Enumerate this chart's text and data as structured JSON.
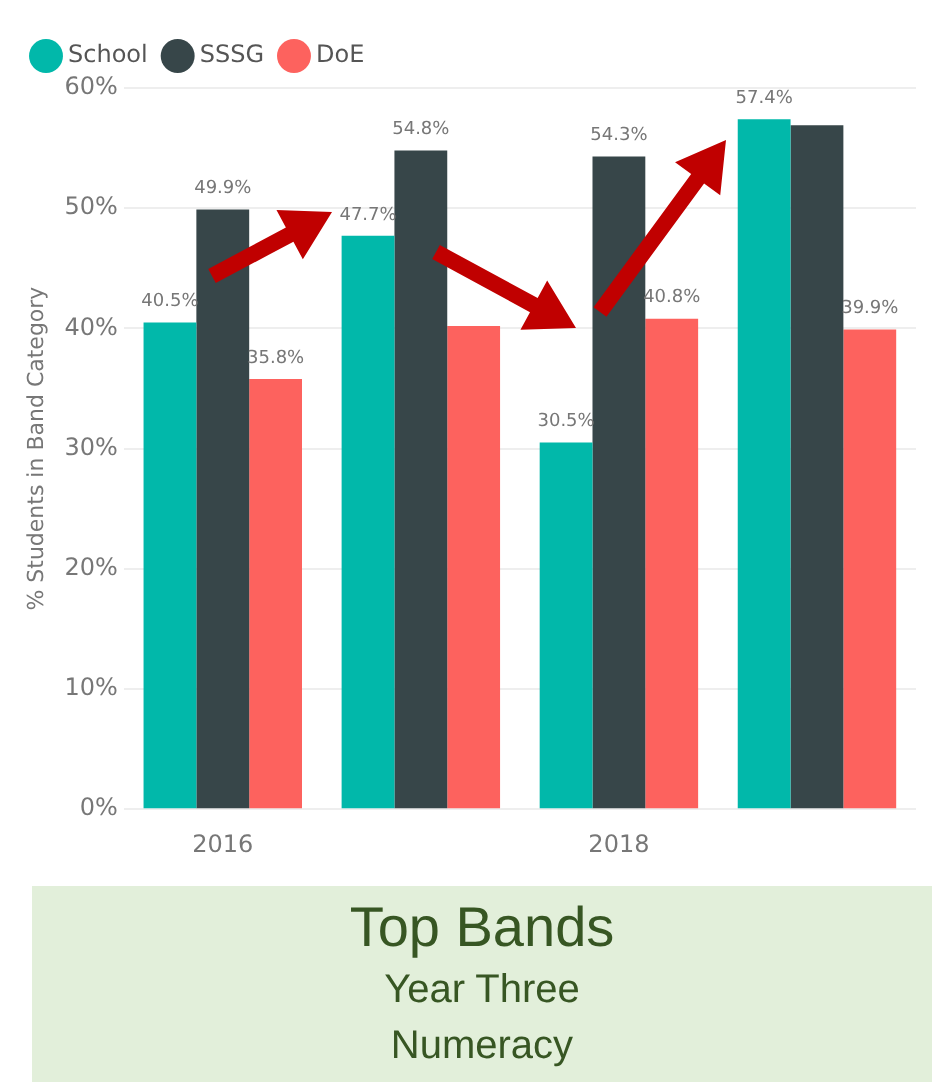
{
  "chart_data": {
    "type": "bar",
    "title": "Top Bands",
    "subtitle": "Year Three Numeracy",
    "ylabel": "% Students in Band Category",
    "categories": [
      "2016",
      null,
      "2018",
      null
    ],
    "series": [
      {
        "name": "School",
        "color": "#01b8aa",
        "values": [
          40.5,
          47.7,
          30.5,
          57.4
        ],
        "value_labels": [
          "40.5%",
          "47.7%",
          "30.5%",
          "57.4%"
        ]
      },
      {
        "name": "SSSG",
        "color": "#374649",
        "values": [
          49.9,
          54.8,
          54.3,
          56.9
        ],
        "value_labels": [
          "49.9%",
          "54.8%",
          "54.3%",
          null
        ]
      },
      {
        "name": "DoE",
        "color": "#fd625e",
        "values": [
          35.8,
          40.2,
          40.8,
          39.9
        ],
        "value_labels": [
          "35.8%",
          null,
          "40.8%",
          "39.9%"
        ]
      }
    ],
    "ylim": [
      0,
      60
    ],
    "yticks": [
      {
        "value": 0,
        "label": "0%"
      },
      {
        "value": 10,
        "label": "10%"
      },
      {
        "value": 20,
        "label": "20%"
      },
      {
        "value": 30,
        "label": "30%"
      },
      {
        "value": 40,
        "label": "40%"
      },
      {
        "value": 50,
        "label": "50%"
      },
      {
        "value": 60,
        "label": "60%"
      }
    ],
    "grid": "y",
    "legend": "top left"
  }
}
